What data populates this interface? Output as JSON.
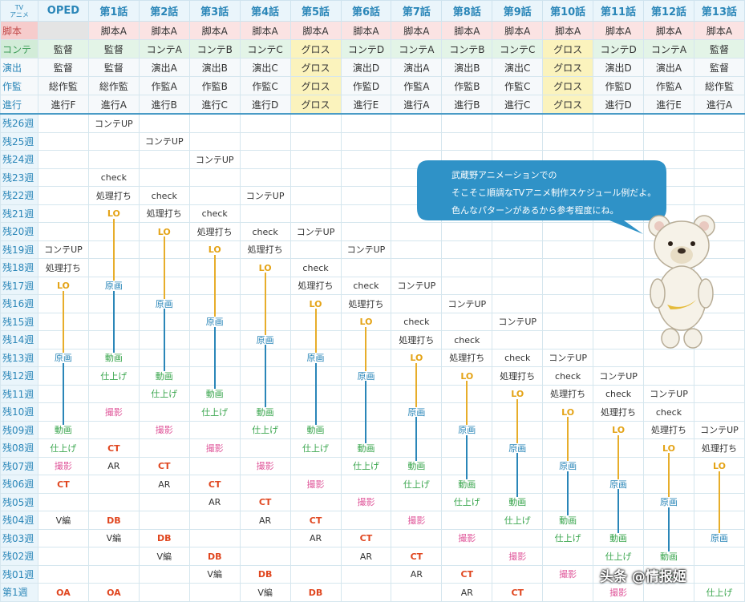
{
  "header": {
    "corner": "TV\nアニメ",
    "columns": [
      "OPED",
      "第1話",
      "第2話",
      "第3話",
      "第4話",
      "第5話",
      "第6話",
      "第7話",
      "第8話",
      "第9話",
      "第10話",
      "第11話",
      "第12話",
      "第13話"
    ]
  },
  "staff_rows": [
    {
      "label": "脚本",
      "cells": [
        "",
        "脚本A",
        "脚本A",
        "脚本A",
        "脚本A",
        "脚本A",
        "脚本A",
        "脚本A",
        "脚本A",
        "脚本A",
        "脚本A",
        "脚本A",
        "脚本A",
        "脚本A"
      ]
    },
    {
      "label": "コンテ",
      "cells": [
        "監督",
        "監督",
        "コンテA",
        "コンテB",
        "コンテC",
        "グロス",
        "コンテD",
        "コンテA",
        "コンテB",
        "コンテC",
        "グロス",
        "コンテD",
        "コンテA",
        "監督"
      ]
    },
    {
      "label": "演出",
      "cells": [
        "監督",
        "監督",
        "演出A",
        "演出B",
        "演出C",
        "グロス",
        "演出D",
        "演出A",
        "演出B",
        "演出C",
        "グロス",
        "演出D",
        "演出A",
        "監督"
      ]
    },
    {
      "label": "作監",
      "cells": [
        "総作監",
        "総作監",
        "作監A",
        "作監B",
        "作監C",
        "グロス",
        "作監D",
        "作監A",
        "作監B",
        "作監C",
        "グロス",
        "作監D",
        "作監A",
        "総作監"
      ]
    },
    {
      "label": "進行",
      "cells": [
        "進行F",
        "進行A",
        "進行B",
        "進行C",
        "進行D",
        "グロス",
        "進行E",
        "進行A",
        "進行B",
        "進行C",
        "グロス",
        "進行D",
        "進行E",
        "進行A"
      ]
    }
  ],
  "week_labels": [
    "残26週",
    "残25週",
    "残24週",
    "残23週",
    "残22週",
    "残21週",
    "残20週",
    "残19週",
    "残18週",
    "残17週",
    "残16週",
    "残15週",
    "残14週",
    "残13週",
    "残12週",
    "残11週",
    "残10週",
    "残09週",
    "残08週",
    "残07週",
    "残06週",
    "残05週",
    "残04週",
    "残03週",
    "残02週",
    "残01週",
    "第1週"
  ],
  "schedule": [
    {
      "col": 0,
      "events": [
        [
          7,
          "コンテUP"
        ],
        [
          8,
          "処理打ち"
        ],
        [
          9,
          "LO"
        ],
        [
          13,
          "原画"
        ],
        [
          17,
          "動画"
        ],
        [
          18,
          "仕上げ"
        ],
        [
          19,
          "撮影"
        ],
        [
          20,
          "CT"
        ],
        [
          22,
          "V編"
        ],
        [
          26,
          "OA"
        ]
      ]
    },
    {
      "col": 1,
      "events": [
        [
          0,
          "コンテUP"
        ],
        [
          3,
          "check"
        ],
        [
          4,
          "処理打ち"
        ],
        [
          5,
          "LO"
        ],
        [
          9,
          "原画"
        ],
        [
          13,
          "動画"
        ],
        [
          14,
          "仕上げ"
        ],
        [
          16,
          "撮影"
        ],
        [
          18,
          "CT"
        ],
        [
          19,
          "AR"
        ],
        [
          22,
          "DB"
        ],
        [
          23,
          "V編"
        ],
        [
          26,
          "OA"
        ]
      ]
    },
    {
      "col": 2,
      "events": [
        [
          1,
          "コンテUP"
        ],
        [
          4,
          "check"
        ],
        [
          5,
          "処理打ち"
        ],
        [
          6,
          "LO"
        ],
        [
          10,
          "原画"
        ],
        [
          14,
          "動画"
        ],
        [
          15,
          "仕上げ"
        ],
        [
          17,
          "撮影"
        ],
        [
          19,
          "CT"
        ],
        [
          20,
          "AR"
        ],
        [
          23,
          "DB"
        ],
        [
          24,
          "V編"
        ]
      ]
    },
    {
      "col": 3,
      "events": [
        [
          2,
          "コンテUP"
        ],
        [
          5,
          "check"
        ],
        [
          6,
          "処理打ち"
        ],
        [
          7,
          "LO"
        ],
        [
          11,
          "原画"
        ],
        [
          15,
          "動画"
        ],
        [
          16,
          "仕上げ"
        ],
        [
          18,
          "撮影"
        ],
        [
          20,
          "CT"
        ],
        [
          21,
          "AR"
        ],
        [
          24,
          "DB"
        ],
        [
          25,
          "V編"
        ]
      ]
    },
    {
      "col": 4,
      "events": [
        [
          4,
          "コンテUP"
        ],
        [
          6,
          "check"
        ],
        [
          7,
          "処理打ち"
        ],
        [
          8,
          "LO"
        ],
        [
          12,
          "原画"
        ],
        [
          16,
          "動画"
        ],
        [
          17,
          "仕上げ"
        ],
        [
          19,
          "撮影"
        ],
        [
          21,
          "CT"
        ],
        [
          22,
          "AR"
        ],
        [
          25,
          "DB"
        ],
        [
          26,
          "V編"
        ]
      ]
    },
    {
      "col": 5,
      "events": [
        [
          6,
          "コンテUP"
        ],
        [
          8,
          "check"
        ],
        [
          9,
          "処理打ち"
        ],
        [
          10,
          "LO"
        ],
        [
          13,
          "原画"
        ],
        [
          17,
          "動画"
        ],
        [
          18,
          "仕上げ"
        ],
        [
          20,
          "撮影"
        ],
        [
          22,
          "CT"
        ],
        [
          23,
          "AR"
        ],
        [
          26,
          "DB"
        ]
      ]
    },
    {
      "col": 6,
      "events": [
        [
          7,
          "コンテUP"
        ],
        [
          9,
          "check"
        ],
        [
          10,
          "処理打ち"
        ],
        [
          11,
          "LO"
        ],
        [
          14,
          "原画"
        ],
        [
          18,
          "動画"
        ],
        [
          19,
          "仕上げ"
        ],
        [
          21,
          "撮影"
        ],
        [
          23,
          "CT"
        ],
        [
          24,
          "AR"
        ]
      ]
    },
    {
      "col": 7,
      "events": [
        [
          9,
          "コンテUP"
        ],
        [
          11,
          "check"
        ],
        [
          12,
          "処理打ち"
        ],
        [
          13,
          "LO"
        ],
        [
          16,
          "原画"
        ],
        [
          19,
          "動画"
        ],
        [
          20,
          "仕上げ"
        ],
        [
          22,
          "撮影"
        ],
        [
          24,
          "CT"
        ],
        [
          25,
          "AR"
        ]
      ]
    },
    {
      "col": 8,
      "events": [
        [
          10,
          "コンテUP"
        ],
        [
          12,
          "check"
        ],
        [
          13,
          "処理打ち"
        ],
        [
          14,
          "LO"
        ],
        [
          17,
          "原画"
        ],
        [
          20,
          "動画"
        ],
        [
          21,
          "仕上げ"
        ],
        [
          23,
          "撮影"
        ],
        [
          25,
          "CT"
        ],
        [
          26,
          "AR"
        ]
      ]
    },
    {
      "col": 9,
      "events": [
        [
          11,
          "コンテUP"
        ],
        [
          13,
          "check"
        ],
        [
          14,
          "処理打ち"
        ],
        [
          15,
          "LO"
        ],
        [
          18,
          "原画"
        ],
        [
          21,
          "動画"
        ],
        [
          22,
          "仕上げ"
        ],
        [
          24,
          "撮影"
        ],
        [
          26,
          "CT"
        ]
      ]
    },
    {
      "col": 10,
      "events": [
        [
          13,
          "コンテUP"
        ],
        [
          14,
          "check"
        ],
        [
          15,
          "処理打ち"
        ],
        [
          16,
          "LO"
        ],
        [
          19,
          "原画"
        ],
        [
          22,
          "動画"
        ],
        [
          23,
          "仕上げ"
        ],
        [
          25,
          "撮影"
        ]
      ]
    },
    {
      "col": 11,
      "events": [
        [
          14,
          "コンテUP"
        ],
        [
          15,
          "check"
        ],
        [
          16,
          "処理打ち"
        ],
        [
          17,
          "LO"
        ],
        [
          20,
          "原画"
        ],
        [
          23,
          "動画"
        ],
        [
          24,
          "仕上げ"
        ],
        [
          26,
          "撮影"
        ]
      ]
    },
    {
      "col": 12,
      "events": [
        [
          15,
          "コンテUP"
        ],
        [
          16,
          "check"
        ],
        [
          17,
          "処理打ち"
        ],
        [
          18,
          "LO"
        ],
        [
          21,
          "原画"
        ],
        [
          24,
          "動画"
        ],
        [
          25,
          "仕上げ"
        ]
      ]
    },
    {
      "col": 13,
      "events": [
        [
          17,
          "コンテUP"
        ],
        [
          18,
          "処理打ち"
        ],
        [
          19,
          "LO"
        ],
        [
          23,
          "原画"
        ],
        [
          26,
          "仕上げ"
        ]
      ]
    }
  ],
  "speech_bubble": {
    "lines": [
      "武蔵野アニメーションでの",
      "そこそこ順調なTVアニメ制作スケジュール例だよ。",
      "色んなパターンがあるから参考程度にね。"
    ]
  },
  "watermark": "头条 @情报姬",
  "colors": {
    "header_blue": "#2a86b8",
    "lo": "#e7ad2a",
    "genga": "#2a86b8",
    "green": "#3aa64e",
    "pink": "#e05a9c",
    "red": "#e0461f",
    "gross": "#fbf3bd"
  }
}
